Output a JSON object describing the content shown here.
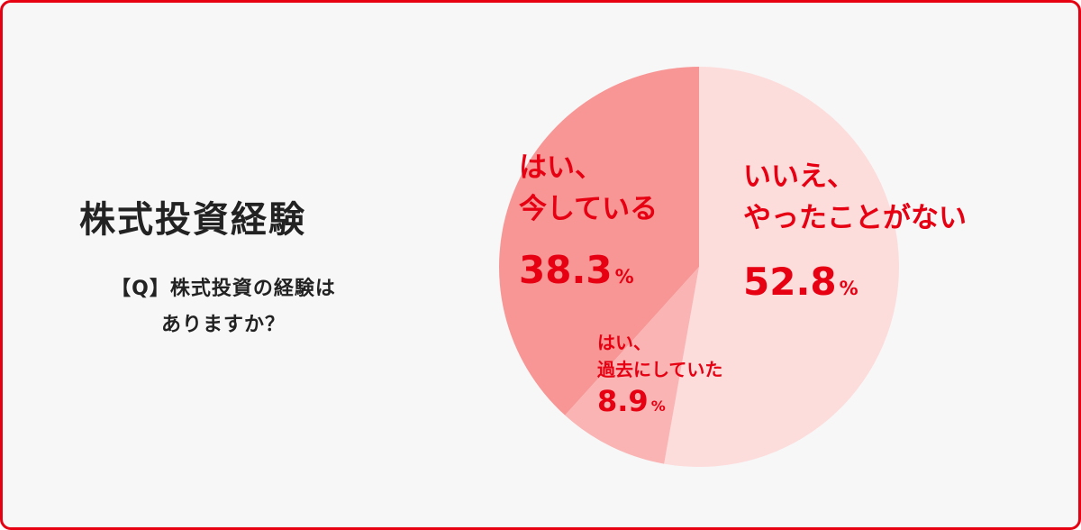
{
  "chart_data": {
    "type": "pie",
    "title": "株式投資経験",
    "subtitle": "【Q】株式投資の経験は\nありますか？",
    "categories": [
      "いいえ、\nやったことがない",
      "はい、\n過去にしていた",
      "はい、\n今している"
    ],
    "values": [
      52.8,
      8.9,
      38.3
    ],
    "unit": "%",
    "colors": [
      "#fddcdc",
      "#fab4b4",
      "#f89696"
    ]
  }
}
